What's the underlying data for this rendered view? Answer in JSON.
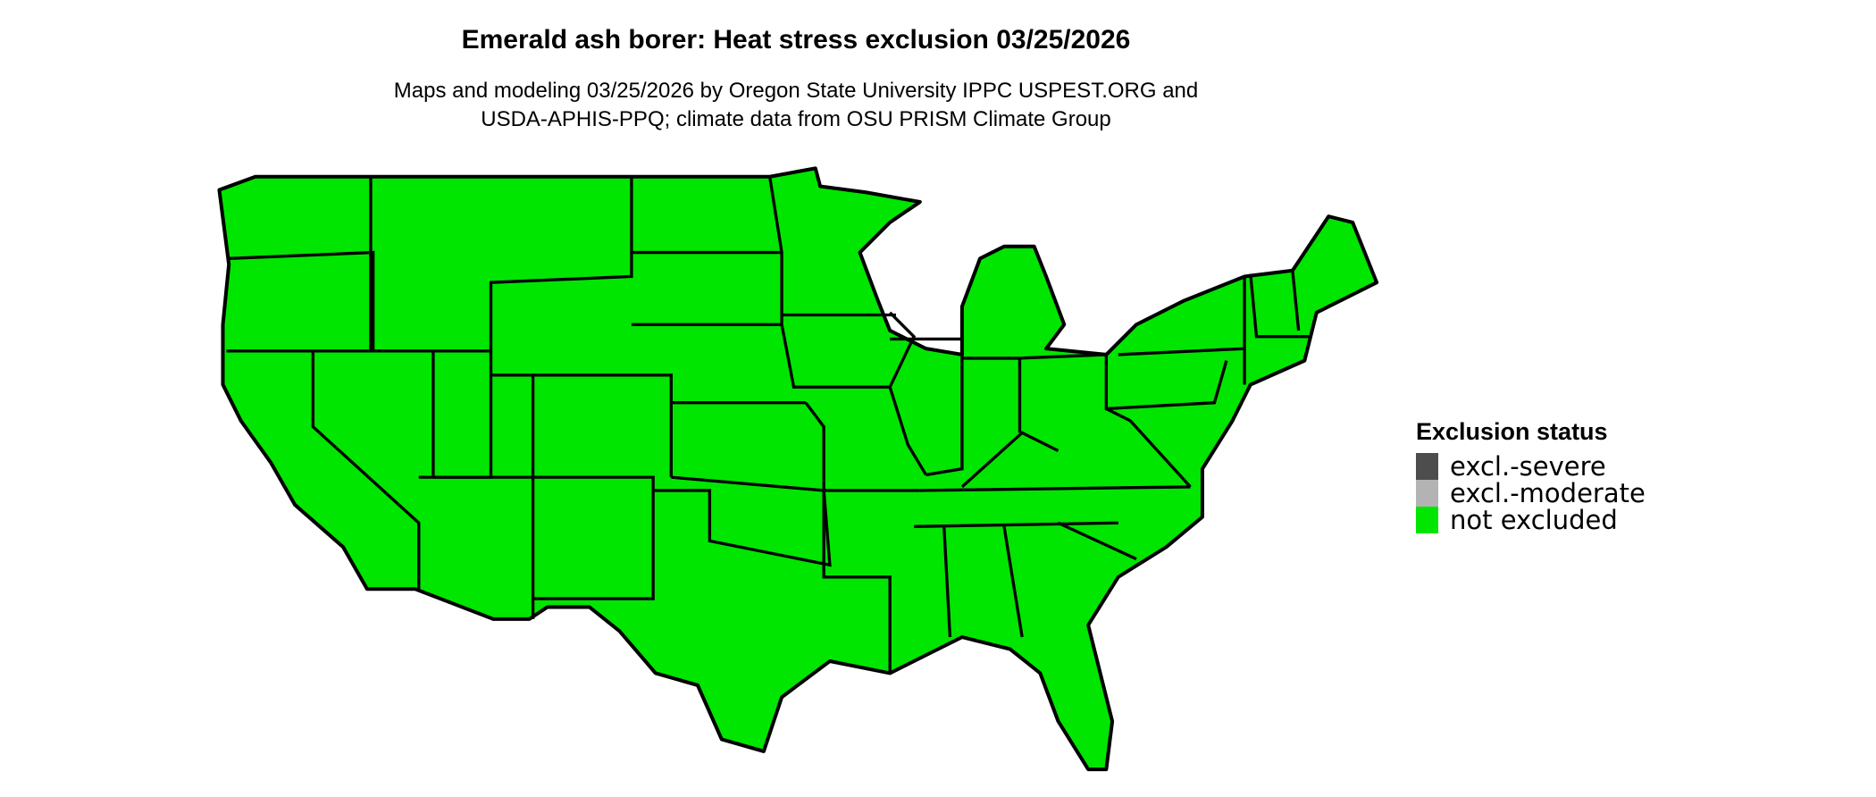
{
  "title": "Emerald ash borer: Heat stress exclusion 03/25/2026",
  "subtitle_lines": [
    "Maps and modeling 03/25/2026 by Oregon State University IPPC USPEST.ORG and",
    "USDA-APHIS-PPQ; climate data from OSU PRISM Climate Group"
  ],
  "map": {
    "region": "Contiguous United States",
    "fill_status": "not excluded",
    "fill_color": "#00E600",
    "border_color": "#000000"
  },
  "legend": {
    "title": "Exclusion status",
    "items": [
      {
        "label": "excl.-severe",
        "color": "#4D4D4D"
      },
      {
        "label": "excl.-moderate",
        "color": "#B3B3B3"
      },
      {
        "label": "not excluded",
        "color": "#00E600"
      }
    ]
  }
}
